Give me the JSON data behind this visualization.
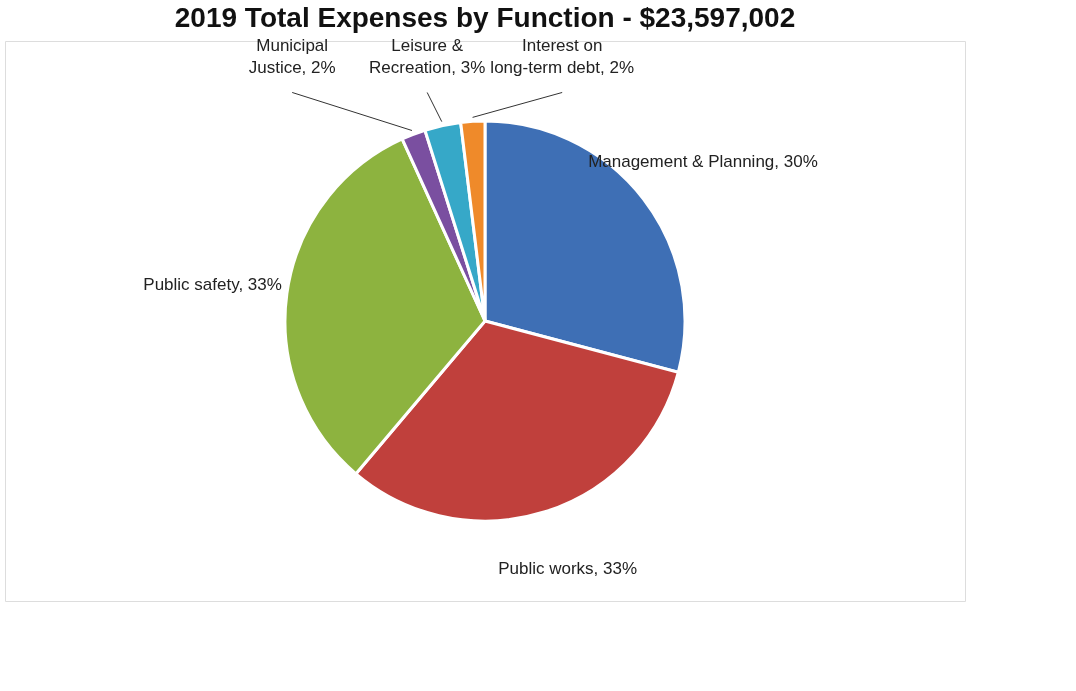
{
  "chart_data": {
    "type": "pie",
    "title": "2019 Total Expenses by Function - $23,597,002",
    "categories": [
      "Management & Planning",
      "Public works",
      "Public safety",
      "Municipal Justice",
      "Leisure & Recreation",
      "Interest on long-term debt"
    ],
    "values": [
      30,
      33,
      33,
      2,
      3,
      2
    ],
    "value_labels": [
      "30%",
      "33%",
      "33%",
      "2%",
      "3%",
      "2%"
    ],
    "colors": [
      "#3e6fb5",
      "#c0403c",
      "#8db33f",
      "#7a4fa0",
      "#36a8c8",
      "#ef8a2a"
    ],
    "legend": false
  }
}
